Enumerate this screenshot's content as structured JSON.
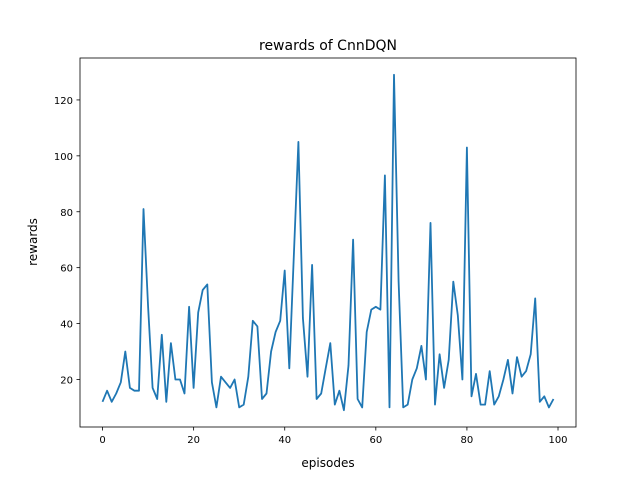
{
  "chart_data": {
    "type": "line",
    "title": "rewards of CnnDQN",
    "xlabel": "episodes",
    "ylabel": "rewards",
    "xlim": [
      -4.95,
      103.95
    ],
    "ylim": [
      3,
      135
    ],
    "xticks": [
      0,
      20,
      40,
      60,
      80,
      100
    ],
    "yticks": [
      20,
      40,
      60,
      80,
      100,
      120
    ],
    "grid": false,
    "line_color": "#1f77b4",
    "x": [
      0,
      1,
      2,
      3,
      4,
      5,
      6,
      7,
      8,
      9,
      10,
      11,
      12,
      13,
      14,
      15,
      16,
      17,
      18,
      19,
      20,
      21,
      22,
      23,
      24,
      25,
      26,
      27,
      28,
      29,
      30,
      31,
      32,
      33,
      34,
      35,
      36,
      37,
      38,
      39,
      40,
      41,
      42,
      43,
      44,
      45,
      46,
      47,
      48,
      49,
      50,
      51,
      52,
      53,
      54,
      55,
      56,
      57,
      58,
      59,
      60,
      61,
      62,
      63,
      64,
      65,
      66,
      67,
      68,
      69,
      70,
      71,
      72,
      73,
      74,
      75,
      76,
      77,
      78,
      79,
      80,
      81,
      82,
      83,
      84,
      85,
      86,
      87,
      88,
      89,
      90,
      91,
      92,
      93,
      94,
      95,
      96,
      97,
      98,
      99
    ],
    "values": [
      12,
      16,
      12,
      15,
      19,
      30,
      17,
      16,
      16,
      81,
      46,
      17,
      13,
      36,
      12,
      33,
      20,
      20,
      15,
      46,
      17,
      44,
      52,
      54,
      19,
      10,
      21,
      19,
      17,
      20,
      10,
      11,
      21,
      41,
      39,
      13,
      15,
      30,
      37,
      41,
      59,
      24,
      64,
      105,
      42,
      21,
      61,
      13,
      15,
      24,
      33,
      11,
      16,
      9,
      25,
      70,
      13,
      10,
      37,
      45,
      46,
      45,
      93,
      10,
      129,
      55,
      10,
      11,
      20,
      24,
      32,
      20,
      76,
      11,
      29,
      17,
      27,
      55,
      43,
      20,
      103,
      14,
      22,
      11,
      11,
      23,
      11,
      14,
      20,
      27,
      15,
      28,
      21,
      23,
      29,
      49,
      12,
      14,
      10,
      13
    ]
  }
}
